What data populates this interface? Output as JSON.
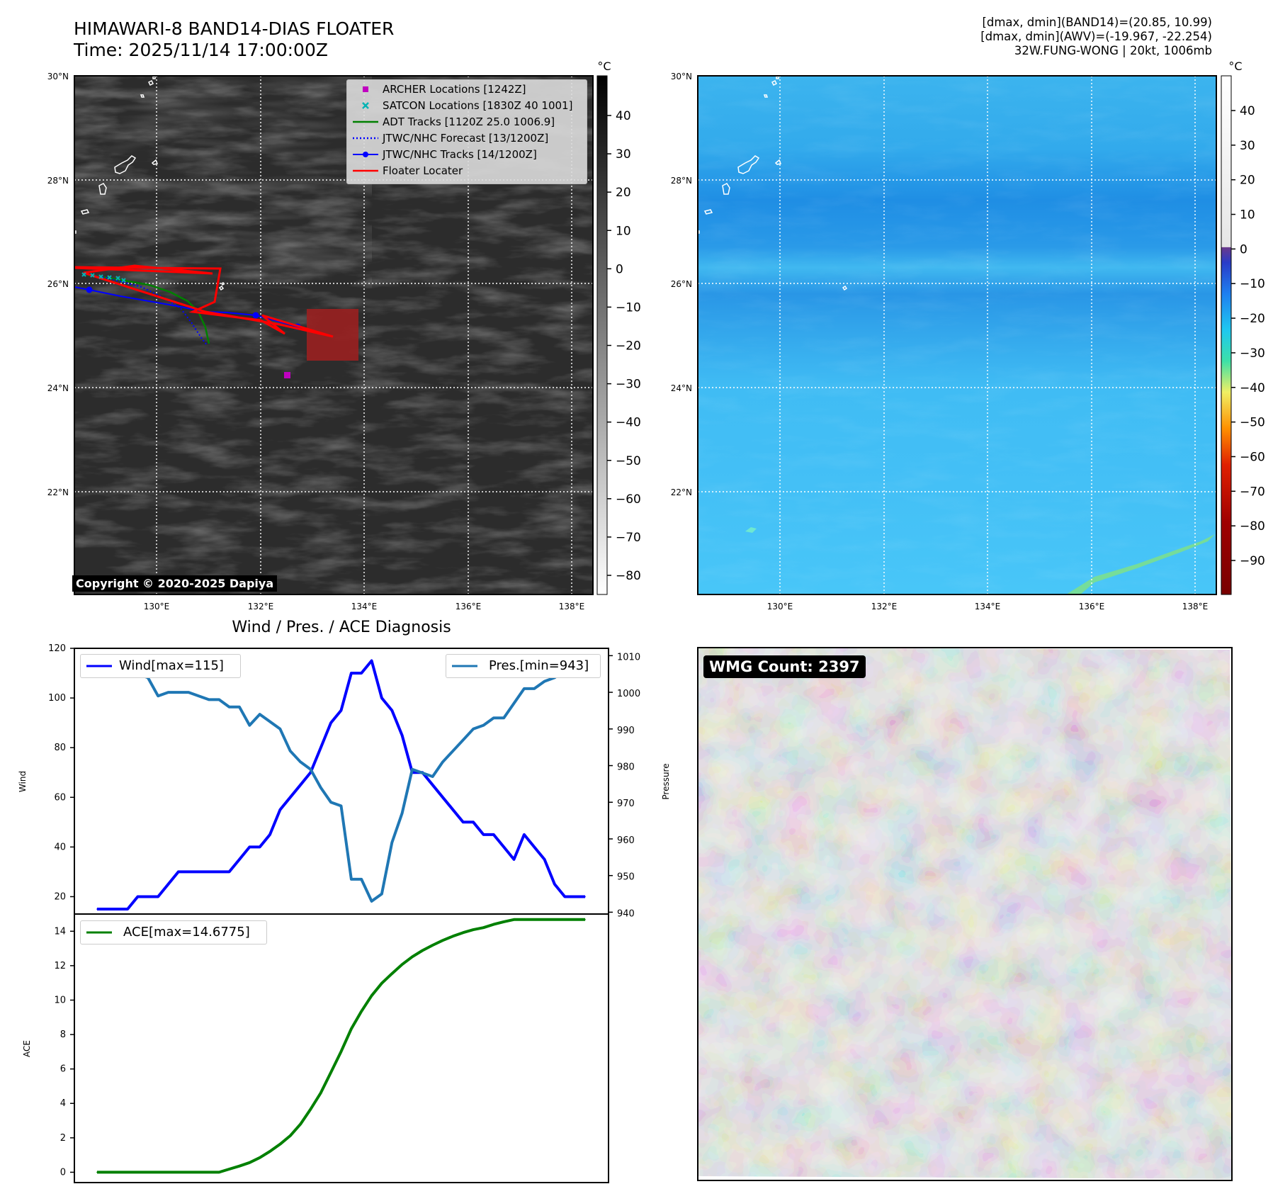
{
  "header": {
    "title_line1": "HIMAWARI-8 BAND14-DIAS FLOATER",
    "title_line2": "Time: 2025/11/14 17:00:00Z",
    "info_line1": "[dmax, dmin](BAND14)=(20.85, 10.99)",
    "info_line2": "[dmax, dmin](AWV)=(-19.967, -22.254)",
    "info_line3": "32W.FUNG-WONG | 20kt, 1006mb"
  },
  "colors": {
    "wind": "#0000ff",
    "pressure": "#1f77b4",
    "ace": "#008000",
    "archer": "#c000c0",
    "satcon": "#00b3b3",
    "adt": "#008000",
    "jtwc_forecast": "#0000ff",
    "jtwc_tracks": "#0000ff",
    "floater": "#ff0000"
  },
  "map1": {
    "colorbar_unit": "°C",
    "colorbar_ticks": [
      "40",
      "30",
      "20",
      "10",
      "0",
      "−10",
      "−20",
      "−30",
      "−40",
      "−50",
      "−60",
      "−70",
      "−80"
    ],
    "colorbar_values": [
      40,
      30,
      20,
      10,
      0,
      -10,
      -20,
      -30,
      -40,
      -50,
      -60,
      -70,
      -80
    ],
    "lat_labels": [
      "30°N",
      "28°N",
      "26°N",
      "24°N",
      "22°N"
    ],
    "lon_labels": [
      "130°E",
      "132°E",
      "134°E",
      "136°E",
      "138°E"
    ],
    "copyright": "Copyright © 2020-2025 Dapiya",
    "legend": [
      {
        "label": "ARCHER Locations [1242Z]",
        "icon": "square-marker"
      },
      {
        "label": "SATCON Locations [1830Z 40 1001]",
        "icon": "x-marker"
      },
      {
        "label": "ADT Tracks [1120Z 25.0 1006.9]",
        "icon": "solid-line"
      },
      {
        "label": "JTWC/NHC Forecast [13/1200Z]",
        "icon": "dotted-line"
      },
      {
        "label": "JTWC/NHC Tracks [14/1200Z]",
        "icon": "dot-line"
      },
      {
        "label": "Floater Locater",
        "icon": "solid-line"
      }
    ]
  },
  "map2": {
    "colorbar_unit": "°C",
    "colorbar_ticks": [
      "40",
      "30",
      "20",
      "10",
      "0",
      "−10",
      "−20",
      "−30",
      "−40",
      "−50",
      "−60",
      "−70",
      "−80",
      "−90"
    ],
    "colorbar_values": [
      40,
      30,
      20,
      10,
      0,
      -10,
      -20,
      -30,
      -40,
      -50,
      -60,
      -70,
      -80,
      -90
    ],
    "lat_labels": [
      "30°N",
      "28°N",
      "26°N",
      "24°N",
      "22°N"
    ],
    "lon_labels": [
      "130°E",
      "132°E",
      "134°E",
      "136°E",
      "138°E"
    ]
  },
  "chart_data": [
    {
      "type": "line",
      "title": "Wind / Pres. / ACE Diagnosis",
      "ylabel": "Wind",
      "ylim": [
        13,
        120
      ],
      "yticks": [
        "120",
        "100",
        "80",
        "60",
        "40",
        "20"
      ],
      "ytick_values": [
        120,
        100,
        80,
        60,
        40,
        20
      ],
      "legend": "Wind[max=115]",
      "y2label": "Pressure",
      "y2lim": [
        939.5,
        1012
      ],
      "y2ticks": [
        "1010",
        "1000",
        "990",
        "980",
        "970",
        "960",
        "950",
        "940"
      ],
      "y2tick_values": [
        1010,
        1000,
        990,
        980,
        970,
        960,
        950,
        940
      ],
      "legend2": "Pres.[min=943]",
      "series": [
        {
          "name": "Wind",
          "values": [
            15,
            15,
            15,
            15,
            20,
            20,
            20,
            25,
            30,
            30,
            30,
            30,
            30,
            30,
            35,
            40,
            40,
            45,
            55,
            60,
            65,
            70,
            80,
            90,
            95,
            110,
            110,
            115,
            100,
            95,
            85,
            70,
            70,
            65,
            60,
            55,
            50,
            50,
            45,
            45,
            40,
            35,
            45,
            40,
            35,
            25,
            20,
            20,
            20
          ]
        },
        {
          "name": "Pressure",
          "values": [
            1008,
            1006,
            1006,
            1006,
            1005,
            1004,
            999,
            1000,
            1000,
            1000,
            999,
            998,
            998,
            996,
            996,
            991,
            994,
            992,
            990,
            984,
            981,
            979,
            974,
            970,
            969,
            949,
            949,
            943,
            945,
            959,
            967,
            979,
            978,
            977,
            981,
            984,
            987,
            990,
            991,
            993,
            993,
            997,
            1001,
            1001,
            1003,
            1004,
            1006,
            1007,
            1008
          ]
        }
      ]
    },
    {
      "type": "line",
      "ylabel": "ACE",
      "ylim": [
        -0.6,
        15
      ],
      "yticks": [
        "14",
        "12",
        "10",
        "8",
        "6",
        "4",
        "2",
        "0"
      ],
      "ytick_values": [
        14,
        12,
        10,
        8,
        6,
        4,
        2,
        0
      ],
      "legend": "ACE[max=14.6775]",
      "series": [
        {
          "name": "ACE",
          "values": [
            0,
            0,
            0,
            0,
            0,
            0,
            0,
            0,
            0,
            0,
            0,
            0,
            0,
            0.18,
            0.36,
            0.56,
            0.85,
            1.21,
            1.63,
            2.12,
            2.79,
            3.66,
            4.61,
            5.8,
            7.01,
            8.33,
            9.35,
            10.26,
            10.98,
            11.54,
            12.07,
            12.52,
            12.88,
            13.19,
            13.47,
            13.71,
            13.92,
            14.09,
            14.21,
            14.4,
            14.55,
            14.68,
            14.68,
            14.68,
            14.68,
            14.68,
            14.68,
            14.68,
            14.68
          ]
        }
      ]
    }
  ],
  "wmg": {
    "label": "WMG Count: 2397"
  }
}
